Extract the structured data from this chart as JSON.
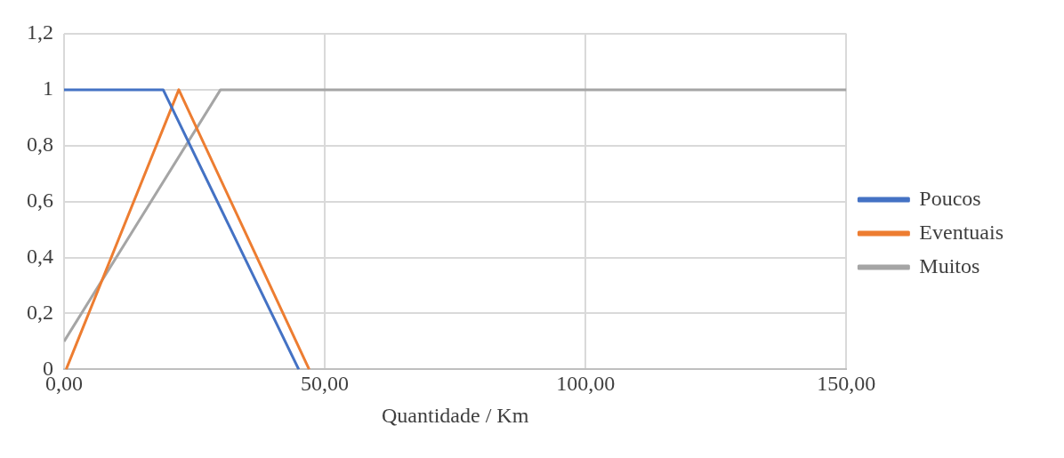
{
  "chart_data": {
    "type": "line",
    "xlabel": "Quantidade / Km",
    "xlim": [
      0,
      150
    ],
    "xticks": [
      {
        "value": 0,
        "label": "0,00"
      },
      {
        "value": 50,
        "label": "50,00"
      },
      {
        "value": 100,
        "label": "100,00"
      },
      {
        "value": 150,
        "label": "150,00"
      }
    ],
    "ylim": [
      0,
      1.2
    ],
    "yticks": [
      0,
      {
        "value": 0.2,
        "label": "0,2"
      },
      {
        "value": 0.4,
        "label": "0,4"
      },
      {
        "value": 0.6,
        "label": "0,6"
      },
      {
        "value": 0.8,
        "label": "0,8"
      },
      1,
      {
        "value": 1.2,
        "label": "1,2"
      }
    ],
    "series": [
      {
        "name": "Poucos",
        "color": "#4472c4",
        "x": [
          0,
          19,
          45
        ],
        "values": [
          1,
          1,
          0
        ]
      },
      {
        "name": "Eventuais",
        "color": "#ed7d31",
        "x": [
          0.4,
          22,
          47
        ],
        "values": [
          0,
          1,
          0
        ]
      },
      {
        "name": "Muitos",
        "color": "#a5a5a5",
        "x": [
          0,
          30,
          150
        ],
        "values": [
          0.1,
          1,
          1
        ]
      }
    ],
    "grid": true,
    "legend": "right",
    "marker": "none",
    "line_style": "solid"
  }
}
